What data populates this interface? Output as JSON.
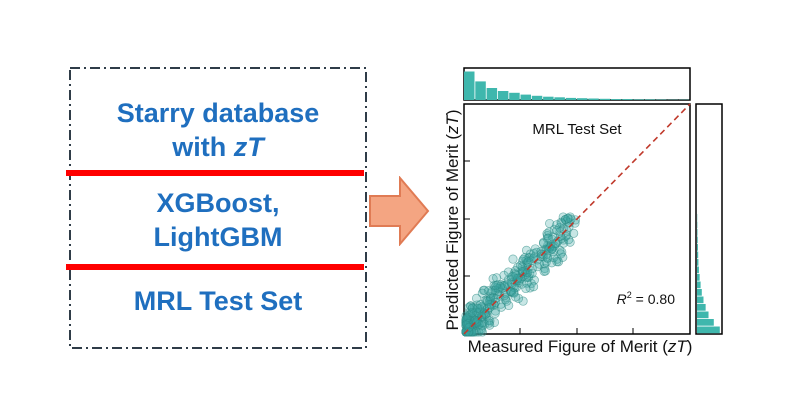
{
  "left_box": {
    "line1": "Starry database",
    "line2_prefix": "with ",
    "line2_italic": "zT",
    "line3": "XGBoost,",
    "line4": "LightGBM",
    "line5": "MRL Test Set"
  },
  "chart_data": {
    "type": "scatter",
    "title": "MRL Test Set",
    "xlabel_prefix": "Measured Figure of Merit (",
    "xlabel_italic": "zT",
    "xlabel_suffix": ")",
    "ylabel_prefix": "Predicted Figure of Merit (",
    "ylabel_italic": "zT",
    "ylabel_suffix": ")",
    "r2_label": "R",
    "r2_exp": "2",
    "r2_value": " = 0.80",
    "xlim": [
      0,
      1
    ],
    "ylim": [
      0,
      1
    ],
    "identity_line": true,
    "colors": {
      "points": "#3aa7a0",
      "points_stroke": "#2b8a84",
      "hist": "#3fb7ad",
      "diag": "#c0392b",
      "arrow_fill": "#f4a582",
      "arrow_stroke": "#e07b54"
    },
    "top_hist": [
      0.95,
      0.62,
      0.4,
      0.3,
      0.24,
      0.18,
      0.14,
      0.11,
      0.09,
      0.07,
      0.06,
      0.05,
      0.04,
      0.03,
      0.03,
      0.02,
      0.02,
      0.015,
      0.01,
      0.01
    ],
    "right_hist": [
      0.95,
      0.7,
      0.48,
      0.36,
      0.27,
      0.2,
      0.15,
      0.11,
      0.08,
      0.06,
      0.05,
      0.04,
      0.03,
      0.02,
      0.015,
      0.01
    ]
  }
}
